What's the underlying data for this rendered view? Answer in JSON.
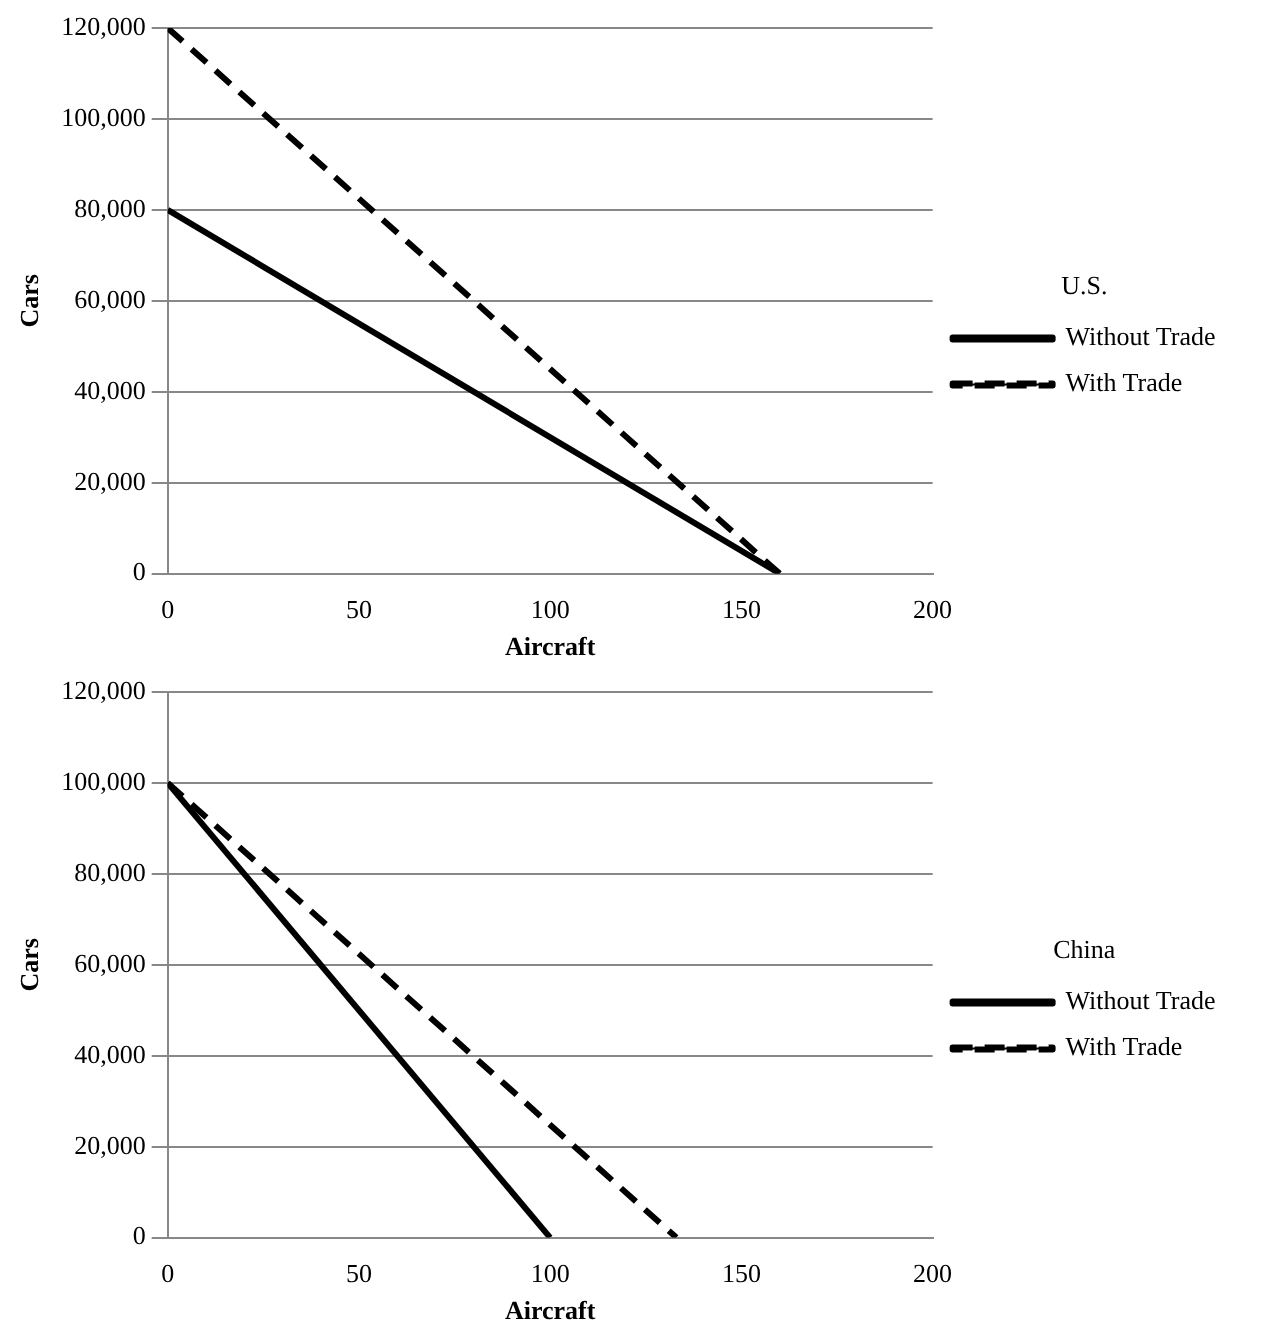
{
  "chart_data": [
    {
      "type": "line",
      "legend_title": "U.S.",
      "xlabel": "Aircraft",
      "ylabel": "Cars",
      "xlim": [
        0,
        200
      ],
      "xticks": [
        0,
        50,
        100,
        150,
        200
      ],
      "ylim": [
        0,
        120000
      ],
      "yticks": [
        0,
        {
          "value": 20000,
          "label": "20,000"
        },
        {
          "value": 40000,
          "label": "40,000"
        },
        {
          "value": 60000,
          "label": "60,000"
        },
        {
          "value": 80000,
          "label": "80,000"
        },
        {
          "value": 100000,
          "label": "100,000"
        },
        {
          "value": 120000,
          "label": "120,000"
        }
      ],
      "grid": "y",
      "legend": "right",
      "marker": "none",
      "series": [
        {
          "name": "Without Trade",
          "color": "#000000",
          "line_style": "solid",
          "x": [
            0,
            160
          ],
          "values": [
            80000,
            0
          ]
        },
        {
          "name": "With Trade",
          "color": "#000000",
          "line_style": "dashed",
          "x": [
            0,
            160
          ],
          "values": [
            120000,
            0
          ]
        }
      ]
    },
    {
      "type": "line",
      "legend_title": "China",
      "xlabel": "Aircraft",
      "ylabel": "Cars",
      "xlim": [
        0,
        200
      ],
      "xticks": [
        0,
        50,
        100,
        150,
        200
      ],
      "ylim": [
        0,
        120000
      ],
      "yticks": [
        0,
        {
          "value": 20000,
          "label": "20,000"
        },
        {
          "value": 40000,
          "label": "40,000"
        },
        {
          "value": 60000,
          "label": "60,000"
        },
        {
          "value": 80000,
          "label": "80,000"
        },
        {
          "value": 100000,
          "label": "100,000"
        },
        {
          "value": 120000,
          "label": "120,000"
        }
      ],
      "grid": "y",
      "legend": "right",
      "marker": "none",
      "series": [
        {
          "name": "Without Trade",
          "color": "#000000",
          "line_style": "solid",
          "x": [
            0,
            100
          ],
          "values": [
            100000,
            0
          ]
        },
        {
          "name": "With Trade",
          "color": "#000000",
          "line_style": "dashed",
          "x": [
            0,
            133
          ],
          "values": [
            100000,
            0
          ]
        }
      ]
    }
  ]
}
